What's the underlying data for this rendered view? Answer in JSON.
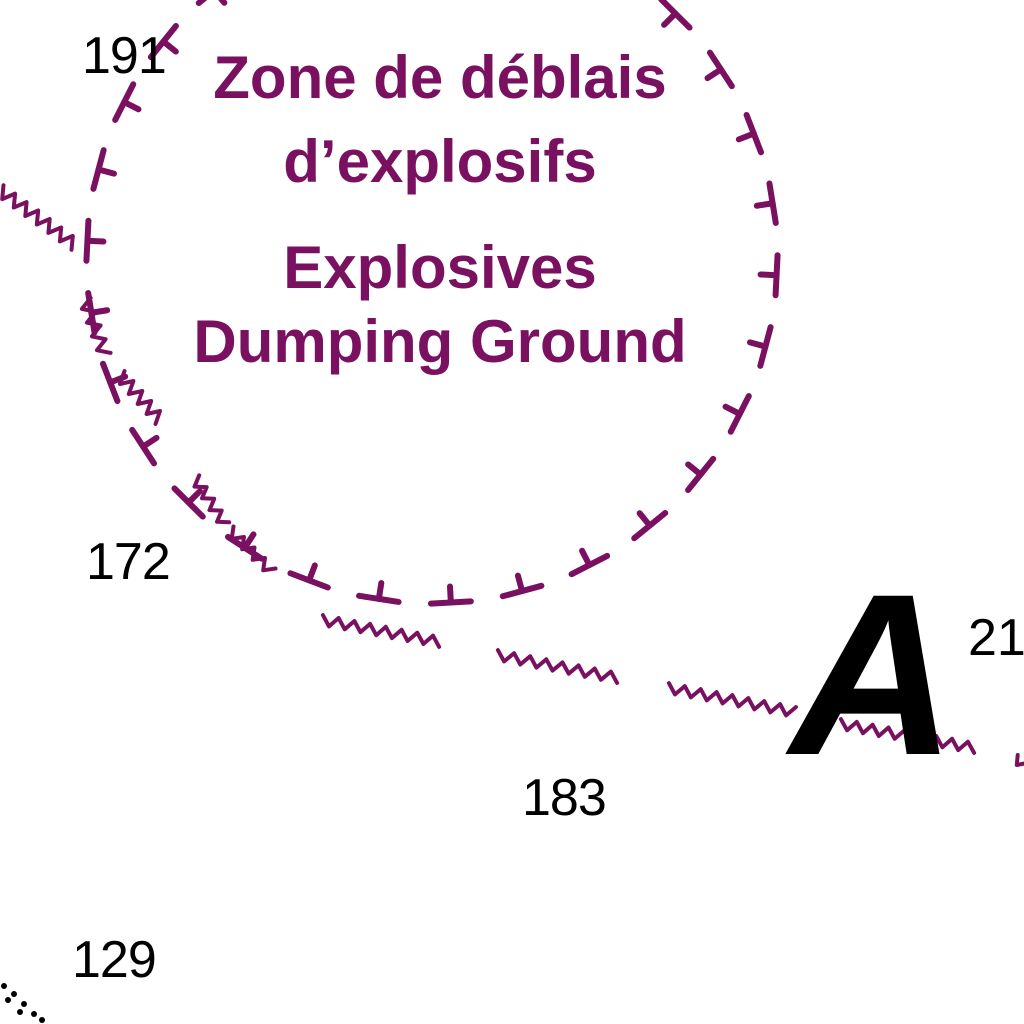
{
  "zone": {
    "line_fr_1": "Zone de déblais",
    "line_fr_2": "d’explosifs",
    "line_en_1": "Explosives",
    "line_en_2": "Dumping Ground",
    "color": "#7a1060"
  },
  "soundings": {
    "s191": "191",
    "s172": "172",
    "s183": "183",
    "s129": "129",
    "s21": "21"
  },
  "area_label": "A",
  "colors": {
    "magenta": "#7a1060",
    "ink": "#000000",
    "background": "#ffffff"
  }
}
